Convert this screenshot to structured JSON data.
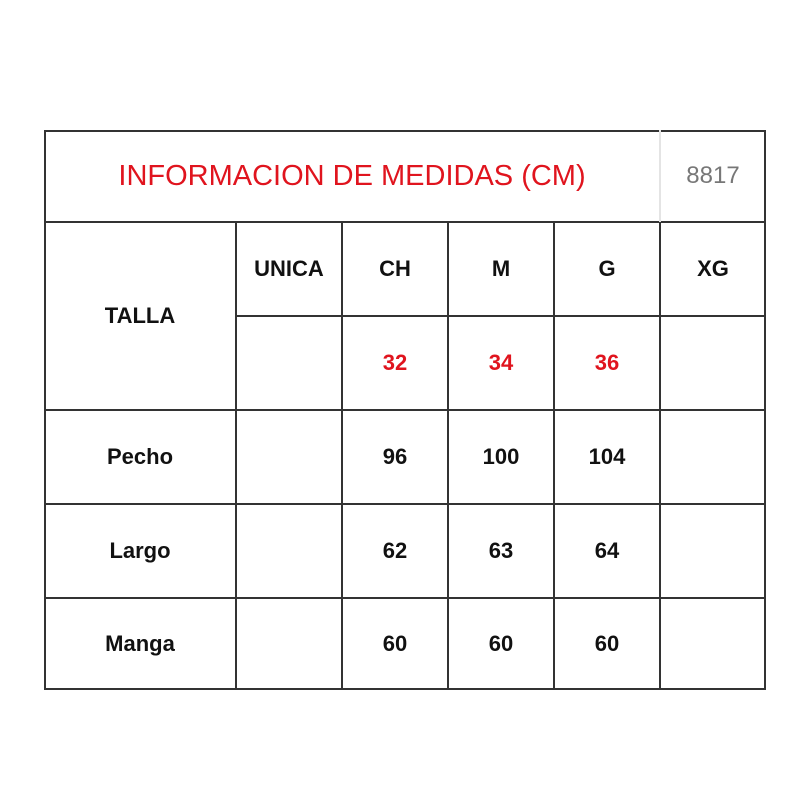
{
  "title": "INFORMACION DE MEDIDAS (CM)",
  "code": "8817",
  "colors": {
    "title": "#e0141e",
    "sizes_numeric": "#e0141e",
    "code": "#777777"
  },
  "talla_label": "TALLA",
  "sizes": [
    "UNICA",
    "CH",
    "M",
    "G",
    "XG"
  ],
  "size_numbers": [
    "",
    "32",
    "34",
    "36",
    ""
  ],
  "rows": [
    {
      "label": "Pecho",
      "values": [
        "",
        "96",
        "100",
        "104",
        ""
      ]
    },
    {
      "label": "Largo",
      "values": [
        "",
        "62",
        "63",
        "64",
        ""
      ]
    },
    {
      "label": "Manga",
      "values": [
        "",
        "60",
        "60",
        "60",
        ""
      ]
    }
  ]
}
